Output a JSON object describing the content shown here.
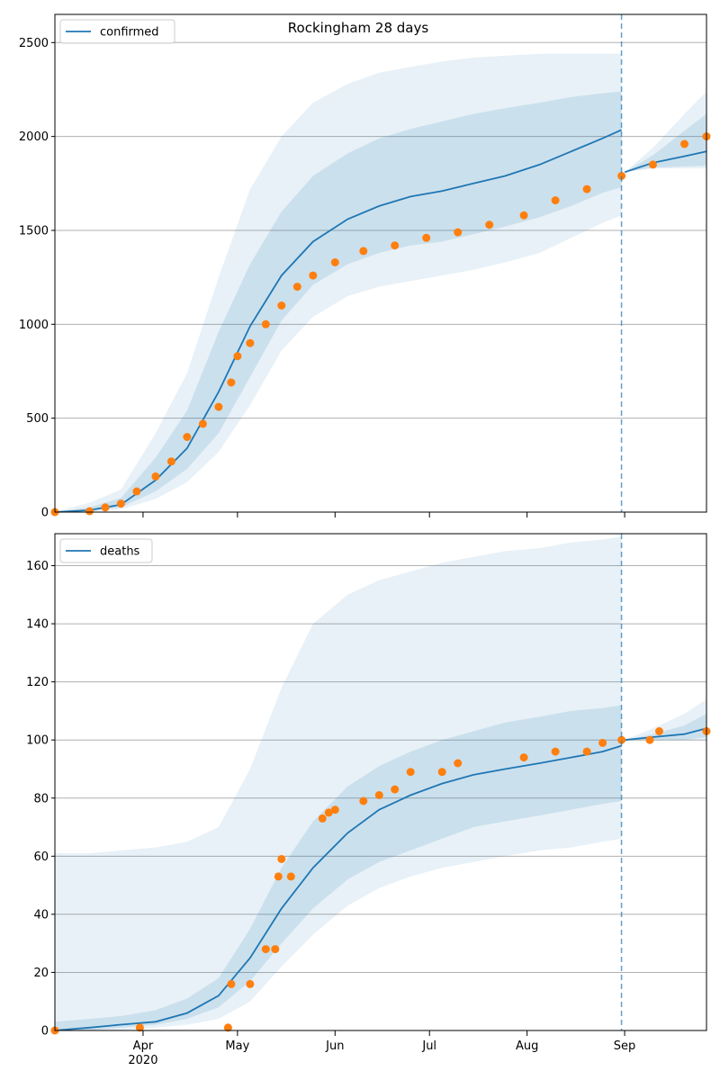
{
  "title": "Rockingham 28 days",
  "x_ticks": [
    {
      "label": "Apr",
      "date": "2020-04-01"
    },
    {
      "label": "May",
      "date": "2020-05-01"
    },
    {
      "label": "Jun",
      "date": "2020-06-01"
    },
    {
      "label": "Jul",
      "date": "2020-07-01"
    },
    {
      "label": "Aug",
      "date": "2020-08-01"
    },
    {
      "label": "Sep",
      "date": "2020-09-01"
    }
  ],
  "year_label": "2020",
  "colors": {
    "model": "#1f77b4",
    "observed": "#ff7f0e",
    "grid": "#b0b0b0"
  },
  "chart_data": [
    {
      "type": "line",
      "legend": "confirmed",
      "legend_position": "top-left",
      "x_range": [
        "2020-03-04",
        "2020-09-27"
      ],
      "ylim": [
        0,
        2650
      ],
      "yticks": [
        0,
        500,
        1000,
        1500,
        2000,
        2500
      ],
      "grid": "horizontal",
      "forecast_start": "2020-08-31",
      "model": {
        "x": [
          "2020-03-04",
          "2020-03-15",
          "2020-03-25",
          "2020-04-05",
          "2020-04-15",
          "2020-04-25",
          "2020-05-05",
          "2020-05-15",
          "2020-05-25",
          "2020-06-05",
          "2020-06-15",
          "2020-06-25",
          "2020-07-05",
          "2020-07-15",
          "2020-07-25",
          "2020-08-05",
          "2020-08-15",
          "2020-08-25",
          "2020-08-31",
          "2020-09-01",
          "2020-09-10",
          "2020-09-20",
          "2020-09-27"
        ],
        "median": [
          0,
          10,
          40,
          170,
          340,
          640,
          990,
          1260,
          1440,
          1560,
          1630,
          1680,
          1710,
          1750,
          1790,
          1850,
          1920,
          1990,
          2035,
          1810,
          1860,
          1895,
          1920
        ],
        "p10": [
          0,
          5,
          25,
          110,
          230,
          420,
          720,
          1020,
          1210,
          1320,
          1380,
          1420,
          1440,
          1480,
          1520,
          1570,
          1630,
          1700,
          1730,
          1810,
          1835,
          1840,
          1845
        ],
        "p90": [
          0,
          25,
          75,
          290,
          540,
          960,
          1320,
          1600,
          1790,
          1910,
          1990,
          2040,
          2080,
          2120,
          2150,
          2180,
          2210,
          2230,
          2240,
          1810,
          1900,
          2030,
          2120
        ],
        "p2": [
          0,
          2,
          15,
          70,
          160,
          320,
          570,
          860,
          1040,
          1150,
          1200,
          1230,
          1260,
          1290,
          1330,
          1380,
          1460,
          1540,
          1580,
          1810,
          1830,
          1830,
          1830
        ],
        "p98": [
          0,
          50,
          120,
          420,
          740,
          1250,
          1720,
          2000,
          2180,
          2280,
          2340,
          2370,
          2400,
          2420,
          2430,
          2440,
          2440,
          2440,
          2440,
          1810,
          1940,
          2120,
          2240
        ]
      },
      "observed": {
        "x": [
          "2020-03-04",
          "2020-03-15",
          "2020-03-20",
          "2020-03-25",
          "2020-03-30",
          "2020-04-05",
          "2020-04-10",
          "2020-04-15",
          "2020-04-20",
          "2020-04-25",
          "2020-04-29",
          "2020-05-01",
          "2020-05-05",
          "2020-05-10",
          "2020-05-15",
          "2020-05-20",
          "2020-05-25",
          "2020-06-01",
          "2020-06-10",
          "2020-06-20",
          "2020-06-30",
          "2020-07-10",
          "2020-07-20",
          "2020-07-31",
          "2020-08-10",
          "2020-08-20",
          "2020-08-31",
          "2020-09-10",
          "2020-09-20",
          "2020-09-27"
        ],
        "y": [
          0,
          5,
          25,
          45,
          110,
          190,
          270,
          400,
          470,
          560,
          690,
          830,
          900,
          1000,
          1100,
          1200,
          1260,
          1330,
          1390,
          1420,
          1460,
          1490,
          1530,
          1580,
          1660,
          1720,
          1790,
          1850,
          1960,
          2000
        ]
      }
    },
    {
      "type": "line",
      "legend": "deaths",
      "legend_position": "top-left",
      "x_range": [
        "2020-03-04",
        "2020-09-27"
      ],
      "ylim": [
        0,
        171
      ],
      "yticks": [
        0,
        20,
        40,
        60,
        80,
        100,
        120,
        140,
        160
      ],
      "grid": "horizontal",
      "forecast_start": "2020-08-31",
      "model": {
        "x": [
          "2020-03-04",
          "2020-03-15",
          "2020-03-25",
          "2020-04-05",
          "2020-04-15",
          "2020-04-25",
          "2020-05-05",
          "2020-05-15",
          "2020-05-25",
          "2020-06-05",
          "2020-06-15",
          "2020-06-25",
          "2020-07-05",
          "2020-07-15",
          "2020-07-25",
          "2020-08-05",
          "2020-08-15",
          "2020-08-25",
          "2020-08-31",
          "2020-09-01",
          "2020-09-10",
          "2020-09-20",
          "2020-09-27"
        ],
        "median": [
          0,
          1,
          2,
          3,
          6,
          12,
          25,
          42,
          56,
          68,
          76,
          81,
          85,
          88,
          90,
          92,
          94,
          96,
          98,
          100,
          101,
          102,
          104
        ],
        "p10": [
          0,
          0,
          1,
          2,
          4,
          8,
          17,
          30,
          42,
          52,
          58,
          62,
          66,
          70,
          72,
          74,
          76,
          78,
          79,
          100,
          100,
          100,
          101
        ],
        "p90": [
          3,
          4,
          5,
          7,
          11,
          18,
          35,
          56,
          72,
          84,
          91,
          96,
          100,
          103,
          106,
          108,
          110,
          111,
          112,
          100,
          102,
          105,
          109
        ],
        "p2": [
          0,
          0,
          0,
          1,
          2,
          4,
          10,
          22,
          33,
          43,
          49,
          53,
          56,
          58,
          60,
          62,
          63,
          65,
          66,
          100,
          100,
          100,
          100
        ],
        "p98": [
          61,
          61,
          62,
          63,
          65,
          70,
          90,
          118,
          140,
          150,
          155,
          158,
          161,
          163,
          165,
          166,
          168,
          169,
          170,
          100,
          104,
          109,
          114
        ]
      },
      "observed": {
        "x": [
          "2020-03-04",
          "2020-03-31",
          "2020-04-28",
          "2020-04-29",
          "2020-05-05",
          "2020-05-10",
          "2020-05-13",
          "2020-05-14",
          "2020-05-15",
          "2020-05-18",
          "2020-05-28",
          "2020-05-30",
          "2020-06-01",
          "2020-06-10",
          "2020-06-15",
          "2020-06-20",
          "2020-06-25",
          "2020-07-05",
          "2020-07-10",
          "2020-07-31",
          "2020-08-10",
          "2020-08-20",
          "2020-08-25",
          "2020-08-31",
          "2020-09-09",
          "2020-09-12",
          "2020-09-27"
        ],
        "y": [
          0,
          1,
          1,
          16,
          16,
          28,
          28,
          53,
          59,
          53,
          73,
          75,
          76,
          79,
          81,
          83,
          89,
          89,
          92,
          94,
          96,
          96,
          99,
          100,
          100,
          103,
          103
        ]
      }
    }
  ]
}
